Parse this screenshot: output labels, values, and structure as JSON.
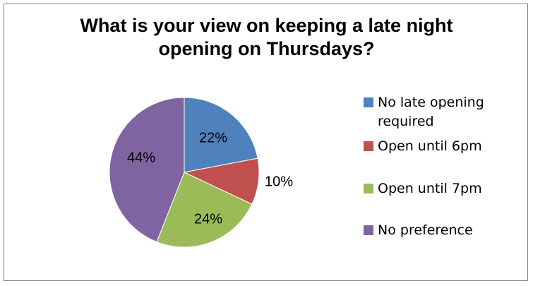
{
  "chart_data": {
    "type": "pie",
    "title_lines": [
      "What is your view on keeping a late night",
      "opening on Thursdays?"
    ],
    "categories": [
      "No late opening required",
      "Open until 6pm",
      "Open until 7pm",
      "No preference"
    ],
    "values": [
      22,
      10,
      24,
      44
    ],
    "labels": [
      "22%",
      "10%",
      "24%",
      "44%"
    ],
    "colors": [
      "#4f81bd",
      "#c0504d",
      "#9bbb59",
      "#8064a2"
    ],
    "legend_position": "right"
  },
  "legend": {
    "items": [
      {
        "label_line1": "No late opening",
        "label_line2": "required"
      },
      {
        "label_line1": "Open until 6pm",
        "label_line2": ""
      },
      {
        "label_line1": "Open until 7pm",
        "label_line2": ""
      },
      {
        "label_line1": "No preference",
        "label_line2": ""
      }
    ]
  }
}
